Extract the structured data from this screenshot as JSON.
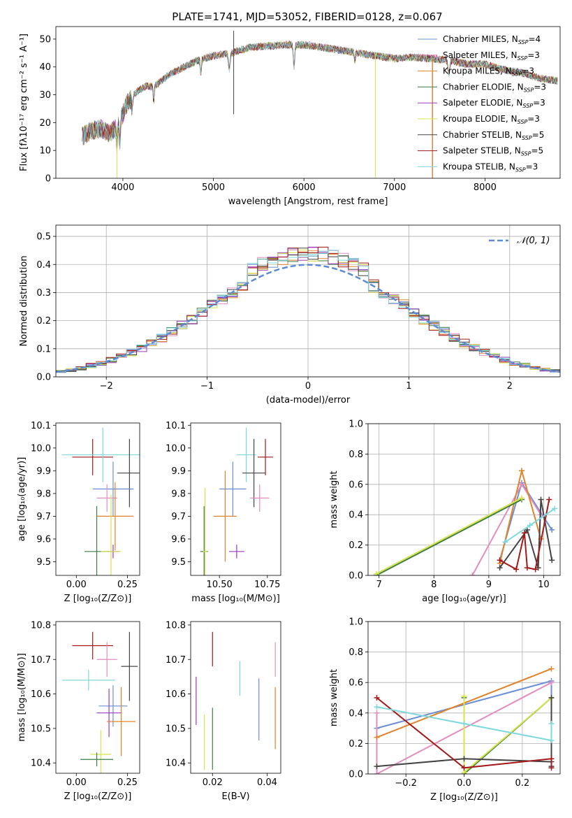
{
  "figure": {
    "title": "PLATE=1741, MJD=53052, FIBERID=0128, z=0.067"
  },
  "colors": {
    "Chabrier MILES": "#6b8fd6",
    "Salpeter MILES": "#e38cc0",
    "Kroupa MILES": "#e2832a",
    "Chabrier ELODIE": "#3f7d43",
    "Salpeter ELODIE": "#9a3bc1",
    "Kroupa ELODIE": "#d7e44a",
    "Chabrier STELIB": "#444444",
    "Salpeter STELIB": "#a51919",
    "Kroupa STELIB": "#7fd8dc"
  },
  "chart_data": [
    {
      "id": "spectrum",
      "type": "line",
      "xlabel": "wavelength [Angstrom, rest frame]",
      "ylabel": "Flux [fλ10⁻¹⁷ erg cm⁻² s⁻¹ A⁻¹]",
      "xlim": [
        3260,
        8830
      ],
      "ylim": [
        0,
        54.5
      ],
      "xticks": [
        4000,
        5000,
        6000,
        7000,
        8000
      ],
      "yticks": [
        0,
        10,
        20,
        30,
        40,
        50
      ],
      "grid": false,
      "legend": "top-right",
      "series": [
        {
          "name": "Chabrier MILES, N_SSP=4",
          "label_main": "Chabrier MILES, N",
          "label_sub": "SSP",
          "label_tail": "=4",
          "color_key": "Chabrier MILES"
        },
        {
          "name": "Salpeter MILES, N_SSP=3",
          "label_main": "Salpeter MILES, N",
          "label_sub": "SSP",
          "label_tail": "=3",
          "color_key": "Salpeter MILES"
        },
        {
          "name": "Kroupa MILES, N_SSP=3",
          "label_main": "Kroupa MILES, N",
          "label_sub": "SSP",
          "label_tail": "=3",
          "color_key": "Kroupa MILES"
        },
        {
          "name": "Chabrier ELODIE, N_SSP=3",
          "label_main": "Chabrier ELODIE, N",
          "label_sub": "SSP",
          "label_tail": "=3",
          "color_key": "Chabrier ELODIE"
        },
        {
          "name": "Salpeter ELODIE, N_SSP=3",
          "label_main": "Salpeter ELODIE, N",
          "label_sub": "SSP",
          "label_tail": "=3",
          "color_key": "Salpeter ELODIE"
        },
        {
          "name": "Kroupa ELODIE, N_SSP=3",
          "label_main": "Kroupa ELODIE, N",
          "label_sub": "SSP",
          "label_tail": "=3",
          "color_key": "Kroupa ELODIE"
        },
        {
          "name": "Chabrier STELIB, N_SSP=5",
          "label_main": "Chabrier STELIB, N",
          "label_sub": "SSP",
          "label_tail": "=5",
          "color_key": "Chabrier STELIB"
        },
        {
          "name": "Salpeter STELIB, N_SSP=5",
          "label_main": "Salpeter STELIB, N",
          "label_sub": "SSP",
          "label_tail": "=5",
          "color_key": "Salpeter STELIB"
        },
        {
          "name": "Kroupa STELIB, N_SSP=3",
          "label_main": "Kroupa STELIB, N",
          "label_sub": "SSP",
          "label_tail": "=3",
          "color_key": "Kroupa STELIB"
        }
      ],
      "continuum_x": [
        3550,
        3650,
        3750,
        3850,
        3950,
        4050,
        4150,
        4250,
        4350,
        4500,
        4650,
        4800,
        5000,
        5200,
        5400,
        5600,
        5800,
        6000,
        6200,
        6400,
        6600,
        6800,
        7000,
        7200,
        7400,
        7600,
        7800,
        8000,
        8200,
        8400,
        8600,
        8800
      ],
      "continuum_y": [
        15,
        17,
        18,
        16,
        19,
        27,
        31,
        33,
        33,
        37,
        39.5,
        42,
        44,
        45,
        47,
        47.5,
        48,
        48,
        47,
        46,
        45,
        44,
        43,
        43.5,
        43,
        42.5,
        41,
        41,
        39,
        38,
        36,
        35
      ],
      "spikes": [
        {
          "x": 3934,
          "y": 0,
          "color_key": "Kroupa ELODIE"
        },
        {
          "x": 5224,
          "y": 53,
          "color_key": "Chabrier STELIB"
        },
        {
          "x": 5224,
          "y": 23,
          "color_key": "Chabrier STELIB"
        },
        {
          "x": 6790,
          "y": 0,
          "color_key": "Kroupa ELODIE"
        },
        {
          "x": 7420,
          "y": 0,
          "color_key": "Salpeter STELIB"
        },
        {
          "x": 7420,
          "y": 0,
          "color_key": "Kroupa MILES"
        }
      ]
    },
    {
      "id": "residuals",
      "type": "line",
      "xlabel": "(data-model)/error",
      "ylabel": "Normed distribution",
      "xlim": [
        -2.5,
        2.5
      ],
      "ylim": [
        0,
        0.54
      ],
      "xticks": [
        -2,
        -1,
        0,
        1,
        2
      ],
      "xticklabels": [
        "−2",
        "−1",
        "0",
        "1",
        "2"
      ],
      "yticks": [
        0.0,
        0.1,
        0.2,
        0.3,
        0.4,
        0.5
      ],
      "yticklabels": [
        "0.0",
        "0.1",
        "0.2",
        "0.3",
        "0.4",
        "0.5"
      ],
      "grid": true,
      "legend": "top-right",
      "gaussian_label": "𝒩(0, 1)",
      "gaussian_color": "#5b8bd6",
      "bin_width": 0.1,
      "bin_start": -2.5
    },
    {
      "id": "age-vs-metallicity",
      "type": "scatter",
      "xlabel": "Z [log₁₀(Z/Z⊙)]",
      "ylabel": "age  [log₁₀(age/yr)]",
      "xlim": [
        -0.1,
        0.31
      ],
      "ylim": [
        9.44,
        10.11
      ],
      "xticks": [
        0.0,
        0.25
      ],
      "xticklabels": [
        "0.00",
        "0.25"
      ],
      "yticks": [
        9.5,
        9.6,
        9.7,
        9.8,
        9.9,
        10.0,
        10.1
      ],
      "yticklabels": [
        "9.5",
        "9.6",
        "9.7",
        "9.8",
        "9.9",
        "10.0",
        "10.1"
      ],
      "grid": false,
      "points": [
        {
          "x": 0.08,
          "y": 9.96,
          "xerr": 0.1,
          "yerr": 0.08,
          "color_key": "Salpeter STELIB"
        },
        {
          "x": 0.13,
          "y": 9.97,
          "xerr": 0.2,
          "yerr": 0.12,
          "color_key": "Kroupa STELIB"
        },
        {
          "x": 0.26,
          "y": 9.89,
          "xerr": 0.06,
          "yerr": 0.15,
          "color_key": "Chabrier STELIB"
        },
        {
          "x": 0.18,
          "y": 9.82,
          "xerr": 0.1,
          "yerr": 0.12,
          "color_key": "Chabrier MILES"
        },
        {
          "x": 0.15,
          "y": 9.78,
          "xerr": 0.05,
          "yerr": 0.06,
          "color_key": "Salpeter MILES"
        },
        {
          "x": 0.19,
          "y": 9.7,
          "xerr": 0.09,
          "yerr": 0.15,
          "color_key": "Kroupa MILES"
        },
        {
          "x": 0.18,
          "y": 9.545,
          "xerr": 0.03,
          "yerr": 0.03,
          "color_key": "Salpeter ELODIE"
        },
        {
          "x": 0.1,
          "y": 9.545,
          "xerr": 0.06,
          "yerr": 0.2,
          "color_key": "Chabrier ELODIE"
        },
        {
          "x": 0.17,
          "y": 9.545,
          "xerr": 0.05,
          "yerr": 0.25,
          "color_key": "Kroupa ELODIE"
        }
      ]
    },
    {
      "id": "age-vs-mass",
      "type": "scatter",
      "xlabel": "mass [log₁₀(M/M⊙)]",
      "ylabel": "",
      "xlim": [
        10.35,
        10.82
      ],
      "ylim": [
        9.44,
        10.11
      ],
      "xticks": [
        10.5,
        10.75
      ],
      "xticklabels": [
        "10.50",
        "10.75"
      ],
      "yticks": [
        9.5,
        9.6,
        9.7,
        9.8,
        9.9,
        10.0,
        10.1
      ],
      "yticklabels": [
        "9.5",
        "9.6",
        "9.7",
        "9.8",
        "9.9",
        "10.0",
        "10.1"
      ],
      "grid": false,
      "points": [
        {
          "x": 10.64,
          "y": 9.97,
          "xerr": 0.05,
          "yerr": 0.12,
          "color_key": "Kroupa STELIB"
        },
        {
          "x": 10.74,
          "y": 9.96,
          "xerr": 0.04,
          "yerr": 0.08,
          "color_key": "Salpeter STELIB"
        },
        {
          "x": 10.68,
          "y": 9.89,
          "xerr": 0.06,
          "yerr": 0.15,
          "color_key": "Chabrier STELIB"
        },
        {
          "x": 10.57,
          "y": 9.82,
          "xerr": 0.07,
          "yerr": 0.12,
          "color_key": "Chabrier MILES"
        },
        {
          "x": 10.71,
          "y": 9.78,
          "xerr": 0.05,
          "yerr": 0.06,
          "color_key": "Salpeter MILES"
        },
        {
          "x": 10.53,
          "y": 9.7,
          "xerr": 0.06,
          "yerr": 0.2,
          "color_key": "Kroupa MILES"
        },
        {
          "x": 10.59,
          "y": 9.545,
          "xerr": 0.04,
          "yerr": 0.03,
          "color_key": "Salpeter ELODIE"
        },
        {
          "x": 10.42,
          "y": 9.545,
          "xerr": 0.02,
          "yerr": 0.2,
          "color_key": "Chabrier ELODIE"
        },
        {
          "x": 10.425,
          "y": 9.545,
          "xerr": 0.01,
          "yerr": 0.28,
          "color_key": "Kroupa ELODIE"
        }
      ]
    },
    {
      "id": "mass-weight-vs-age",
      "type": "line",
      "xlabel": "age  [log₁₀(age/yr)]",
      "ylabel": "mass weight",
      "xlim": [
        6.8,
        10.3
      ],
      "ylim": [
        0.0,
        1.0
      ],
      "xticks": [
        7,
        8,
        9,
        10
      ],
      "xticklabels": [
        "7",
        "8",
        "9",
        "10"
      ],
      "yticks": [
        0.0,
        0.2,
        0.4,
        0.6,
        0.8,
        1.0
      ],
      "yticklabels": [
        "0.0",
        "0.2",
        "0.4",
        "0.6",
        "0.8",
        "1.0"
      ],
      "grid": true,
      "series": [
        {
          "color_key": "Chabrier MILES",
          "x": [
            9.2,
            9.6,
            10.15
          ],
          "y": [
            0.1,
            0.61,
            0.3
          ]
        },
        {
          "color_key": "Salpeter MILES",
          "x": [
            8.7,
            9.6,
            9.95
          ],
          "y": [
            0.0,
            0.6,
            0.4
          ]
        },
        {
          "color_key": "Kroupa MILES",
          "x": [
            9.2,
            9.6,
            9.95
          ],
          "y": [
            0.08,
            0.69,
            0.24
          ]
        },
        {
          "color_key": "Chabrier ELODIE",
          "x": [
            6.95,
            9.6
          ],
          "y": [
            0.0,
            0.5
          ]
        },
        {
          "color_key": "Kroupa ELODIE",
          "x": [
            6.95,
            9.6
          ],
          "y": [
            0.01,
            0.51
          ]
        },
        {
          "color_key": "Chabrier STELIB",
          "x": [
            9.2,
            9.7,
            9.9,
            9.95,
            10.15
          ],
          "y": [
            0.05,
            0.3,
            0.05,
            0.5,
            0.1
          ]
        },
        {
          "color_key": "Salpeter STELIB",
          "x": [
            9.2,
            9.5,
            9.65,
            9.7,
            9.85,
            10.1
          ],
          "y": [
            0.1,
            0.04,
            0.28,
            0.05,
            0.04,
            0.5
          ]
        },
        {
          "color_key": "Kroupa STELIB",
          "x": [
            9.3,
            9.75,
            10.2
          ],
          "y": [
            0.22,
            0.33,
            0.44
          ]
        }
      ]
    },
    {
      "id": "mass-vs-metallicity",
      "type": "scatter",
      "xlabel": "Z [log₁₀(Z/Z⊙)]",
      "ylabel": "mass [log₁₀(M/M⊙)]",
      "xlim": [
        -0.1,
        0.31
      ],
      "ylim": [
        10.37,
        10.81
      ],
      "xticks": [
        0.0,
        0.25
      ],
      "xticklabels": [
        "0.00",
        "0.25"
      ],
      "yticks": [
        10.4,
        10.5,
        10.6,
        10.7,
        10.8
      ],
      "yticklabels": [
        "10.4",
        "10.5",
        "10.6",
        "10.7",
        "10.8"
      ],
      "grid": false,
      "points": [
        {
          "x": 0.08,
          "y": 10.74,
          "xerr": 0.1,
          "yerr": 0.04,
          "color_key": "Salpeter STELIB"
        },
        {
          "x": 0.15,
          "y": 10.7,
          "xerr": 0.05,
          "yerr": 0.05,
          "color_key": "Salpeter MILES"
        },
        {
          "x": 0.26,
          "y": 10.68,
          "xerr": 0.04,
          "yerr": 0.1,
          "color_key": "Chabrier STELIB"
        },
        {
          "x": 0.06,
          "y": 10.64,
          "xerr": 0.13,
          "yerr": 0.03,
          "color_key": "Kroupa STELIB"
        },
        {
          "x": 0.18,
          "y": 10.565,
          "xerr": 0.07,
          "yerr": 0.06,
          "color_key": "Chabrier MILES"
        },
        {
          "x": 0.16,
          "y": 10.545,
          "xerr": 0.06,
          "yerr": 0.07,
          "color_key": "Salpeter ELODIE"
        },
        {
          "x": 0.22,
          "y": 10.52,
          "xerr": 0.07,
          "yerr": 0.1,
          "color_key": "Kroupa MILES"
        },
        {
          "x": 0.12,
          "y": 10.425,
          "xerr": 0.05,
          "yerr": 0.07,
          "color_key": "Kroupa ELODIE"
        },
        {
          "x": 0.1,
          "y": 10.41,
          "xerr": 0.08,
          "yerr": 0.02,
          "color_key": "Chabrier ELODIE"
        }
      ]
    },
    {
      "id": "mass-vs-ebv",
      "type": "scatter",
      "xlabel": "E(B-V)",
      "ylabel": "",
      "xlim": [
        0.012,
        0.045
      ],
      "ylim": [
        10.37,
        10.81
      ],
      "xticks": [
        0.02,
        0.04
      ],
      "xticklabels": [
        "0.02",
        "0.04"
      ],
      "yticks": [
        10.4,
        10.5,
        10.6,
        10.7,
        10.8
      ],
      "yticklabels": [
        "10.4",
        "10.5",
        "10.6",
        "10.7",
        "10.8"
      ],
      "grid": false,
      "points": [
        {
          "x": 0.02,
          "y": 10.73,
          "xerr": 0,
          "yerr": 0.05,
          "color_key": "Salpeter STELIB"
        },
        {
          "x": 0.014,
          "y": 10.58,
          "xerr": 0,
          "yerr": 0.07,
          "color_key": "Salpeter ELODIE"
        },
        {
          "x": 0.017,
          "y": 10.46,
          "xerr": 0,
          "yerr": 0.08,
          "color_key": "Kroupa ELODIE"
        },
        {
          "x": 0.02,
          "y": 10.47,
          "xerr": 0,
          "yerr": 0.09,
          "color_key": "Chabrier ELODIE"
        },
        {
          "x": 0.03,
          "y": 10.645,
          "xerr": 0,
          "yerr": 0.05,
          "color_key": "Kroupa STELIB"
        },
        {
          "x": 0.037,
          "y": 10.555,
          "xerr": 0,
          "yerr": 0.09,
          "color_key": "Chabrier MILES"
        },
        {
          "x": 0.043,
          "y": 10.7,
          "xerr": 0,
          "yerr": 0.05,
          "color_key": "Salpeter MILES"
        },
        {
          "x": 0.043,
          "y": 10.53,
          "xerr": 0,
          "yerr": 0.09,
          "color_key": "Kroupa MILES"
        }
      ]
    },
    {
      "id": "mass-weight-vs-metallicity",
      "type": "line",
      "xlabel": "Z [log₁₀(Z/Z⊙)]",
      "ylabel": "mass weight",
      "xlim": [
        -0.33,
        0.33
      ],
      "ylim": [
        0.0,
        1.0
      ],
      "xticks": [
        -0.2,
        0.0,
        0.2
      ],
      "xticklabels": [
        "−0.2",
        "0.0",
        "0.2"
      ],
      "yticks": [
        0.0,
        0.2,
        0.4,
        0.6,
        0.8,
        1.0
      ],
      "yticklabels": [
        "0.0",
        "0.2",
        "0.4",
        "0.6",
        "0.8",
        "1.0"
      ],
      "grid": true,
      "series": [
        {
          "color_key": "Chabrier MILES",
          "x": [
            -0.3,
            0.3,
            0.3
          ],
          "y": [
            0.3,
            0.61,
            0.1
          ]
        },
        {
          "color_key": "Salpeter MILES",
          "x": [
            -0.3,
            -0.3,
            0.3
          ],
          "y": [
            0.4,
            0.0,
            0.6
          ]
        },
        {
          "color_key": "Kroupa MILES",
          "x": [
            -0.3,
            0.3
          ],
          "y": [
            0.24,
            0.69
          ]
        },
        {
          "color_key": "Chabrier ELODIE",
          "x": [
            0.0,
            0.0,
            0.3
          ],
          "y": [
            0.5,
            0.0,
            0.5
          ]
        },
        {
          "color_key": "Kroupa ELODIE",
          "x": [
            0.0,
            0.0,
            0.3
          ],
          "y": [
            0.51,
            0.01,
            0.5
          ]
        },
        {
          "color_key": "Chabrier STELIB",
          "x": [
            -0.3,
            0.0,
            0.3,
            0.3,
            0.3
          ],
          "y": [
            0.05,
            0.1,
            0.08,
            0.5,
            0.05
          ]
        },
        {
          "color_key": "Salpeter STELIB",
          "x": [
            -0.3,
            0.0,
            0.3,
            0.3
          ],
          "y": [
            0.5,
            0.04,
            0.1,
            0.04
          ]
        },
        {
          "color_key": "Kroupa STELIB",
          "x": [
            -0.3,
            0.0,
            0.3,
            0.3
          ],
          "y": [
            0.44,
            0.33,
            0.22,
            0.33
          ]
        }
      ]
    }
  ]
}
